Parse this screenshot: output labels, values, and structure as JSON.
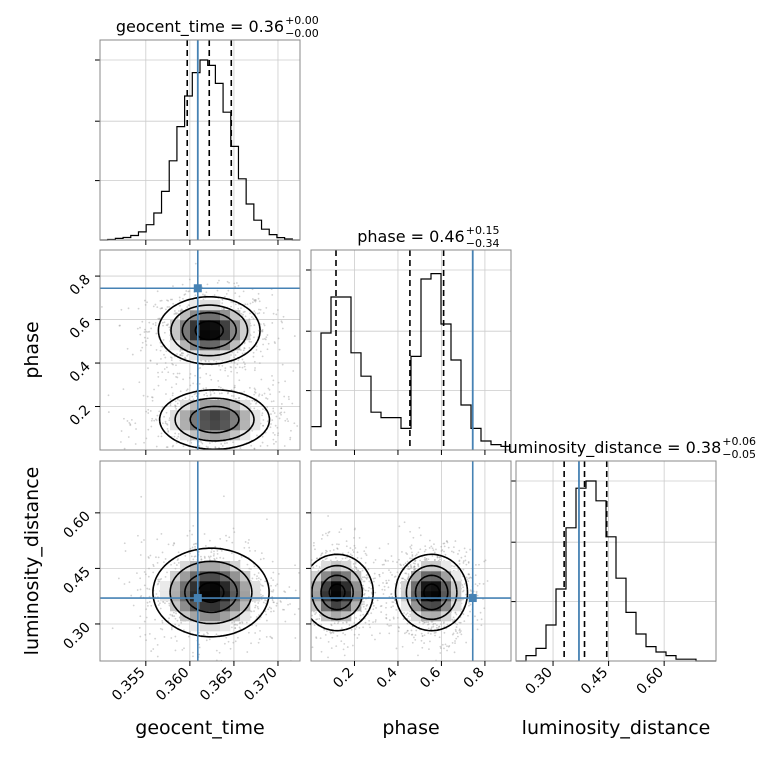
{
  "chart_data": {
    "type": "corner",
    "truth_color": "#4682b4",
    "contour_color": "#000000",
    "parameters": [
      {
        "key": "geocent_time",
        "label": "geocent_time",
        "title_prefix": "geocent_time = 0.36",
        "title_plus": "+0.00",
        "title_minus": "−0.00",
        "range": [
          0.3498,
          0.3725
        ],
        "ticks": [
          {
            "value": 0.355,
            "label": "0.355"
          },
          {
            "value": 0.36,
            "label": "0.360"
          },
          {
            "value": 0.365,
            "label": "0.365"
          },
          {
            "value": 0.37,
            "label": "0.370"
          }
        ],
        "truth": 0.3609,
        "quantiles": [
          0.3597,
          0.3622,
          0.3647
        ],
        "hist_bins": [
          0.3498,
          0.3725
        ],
        "hist_values": [
          0.0,
          0.003,
          0.009,
          0.014,
          0.025,
          0.045,
          0.085,
          0.15,
          0.27,
          0.44,
          0.63,
          0.8,
          0.93,
          1.0,
          0.97,
          0.87,
          0.71,
          0.52,
          0.34,
          0.2,
          0.11,
          0.06,
          0.03,
          0.013,
          0.006,
          0.0
        ],
        "hist_step": true
      },
      {
        "key": "phase",
        "label": "phase",
        "title_prefix": "phase = 0.46",
        "title_plus": "+0.15",
        "title_minus": "−0.34",
        "range": [
          0.0,
          0.92
        ],
        "ticks": [
          {
            "value": 0.2,
            "label": "0.2"
          },
          {
            "value": 0.4,
            "label": "0.4"
          },
          {
            "value": 0.6,
            "label": "0.6"
          },
          {
            "value": 0.8,
            "label": "0.8"
          }
        ],
        "truth": 0.744,
        "quantiles": [
          0.115,
          0.455,
          0.61
        ],
        "hist_bins": [
          0.0,
          0.92
        ],
        "hist_values": [
          0.13,
          0.65,
          0.85,
          0.85,
          0.54,
          0.41,
          0.21,
          0.18,
          0.18,
          0.12,
          0.52,
          0.95,
          0.98,
          0.7,
          0.5,
          0.25,
          0.12,
          0.05,
          0.03,
          0.02
        ],
        "hist_step": true
      },
      {
        "key": "luminosity_distance",
        "label": "luminosity_distance",
        "title_prefix": "luminosity_distance = 0.38",
        "title_plus": "+0.06",
        "title_minus": "−0.05",
        "range": [
          0.2,
          0.74
        ],
        "ticks": [
          {
            "value": 0.3,
            "label": "0.30"
          },
          {
            "value": 0.45,
            "label": "0.45"
          },
          {
            "value": 0.6,
            "label": "0.60"
          }
        ],
        "truth": 0.37,
        "quantiles": [
          0.33,
          0.385,
          0.445
        ],
        "hist_bins": [
          0.2,
          0.74
        ],
        "hist_values": [
          0.0,
          0.03,
          0.07,
          0.2,
          0.4,
          0.74,
          0.96,
          1.0,
          0.89,
          0.69,
          0.46,
          0.27,
          0.15,
          0.08,
          0.05,
          0.03,
          0.01,
          0.01,
          0.0,
          0.0
        ],
        "hist_step": true
      }
    ],
    "pairs": [
      {
        "x": "geocent_time",
        "y": "phase",
        "blobs": [
          {
            "cx": 0.3622,
            "cy": 0.55,
            "sx": 0.0028,
            "sy": 0.075,
            "w": 1.0
          },
          {
            "cx": 0.3628,
            "cy": 0.14,
            "sx": 0.0032,
            "sy": 0.07,
            "w": 0.8
          }
        ],
        "contour_levels": [
          0.12,
          0.3,
          0.55,
          0.85
        ]
      },
      {
        "x": "geocent_time",
        "y": "luminosity_distance",
        "blobs": [
          {
            "cx": 0.3624,
            "cy": 0.385,
            "sx": 0.0032,
            "sy": 0.058,
            "w": 1.0
          }
        ],
        "contour_levels": [
          0.12,
          0.35,
          0.65,
          0.9
        ]
      },
      {
        "x": "phase",
        "y": "luminosity_distance",
        "blobs": [
          {
            "cx": 0.12,
            "cy": 0.385,
            "sx": 0.08,
            "sy": 0.05,
            "w": 1.0
          },
          {
            "cx": 0.555,
            "cy": 0.385,
            "sx": 0.08,
            "sy": 0.05,
            "w": 1.0
          }
        ],
        "contour_levels": [
          0.12,
          0.35,
          0.65,
          0.9
        ]
      }
    ]
  }
}
